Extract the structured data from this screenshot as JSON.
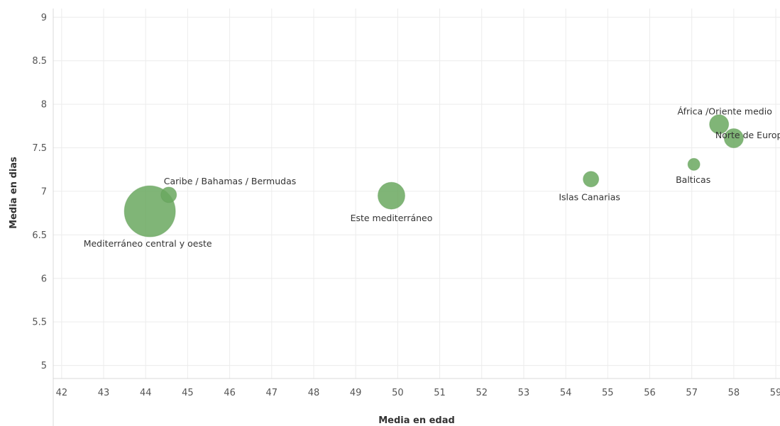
{
  "chart_data": {
    "type": "scatter",
    "xlabel": "Media en edad",
    "ylabel": "Media en dias",
    "xlim": [
      41.8,
      59.1
    ],
    "ylim": [
      4.85,
      9.1
    ],
    "xticks": [
      42,
      43,
      44,
      45,
      46,
      47,
      48,
      49,
      50,
      51,
      52,
      53,
      54,
      55,
      56,
      57,
      58,
      59
    ],
    "yticks": [
      5,
      5.5,
      6,
      6.5,
      7,
      7.5,
      8,
      8.5,
      9
    ],
    "grid": true,
    "marker_color": "#6aa85f",
    "points": [
      {
        "label": "Mediterráneo central y oeste",
        "x": 44.1,
        "y": 6.77,
        "size": 36
      },
      {
        "label": "Caribe / Bahamas / Bermudas",
        "x": 44.55,
        "y": 6.96,
        "size": 11
      },
      {
        "label": "Este mediterráneo",
        "x": 49.85,
        "y": 6.95,
        "size": 19
      },
      {
        "label": "Islas Canarias",
        "x": 54.6,
        "y": 7.14,
        "size": 11
      },
      {
        "label": "Balticas",
        "x": 57.05,
        "y": 7.31,
        "size": 8.5
      },
      {
        "label": "África /Oriente medio",
        "x": 57.65,
        "y": 7.77,
        "size": 13.5
      },
      {
        "label": "Norte de Europa",
        "x": 58.0,
        "y": 7.61,
        "size": 13.5
      }
    ]
  }
}
